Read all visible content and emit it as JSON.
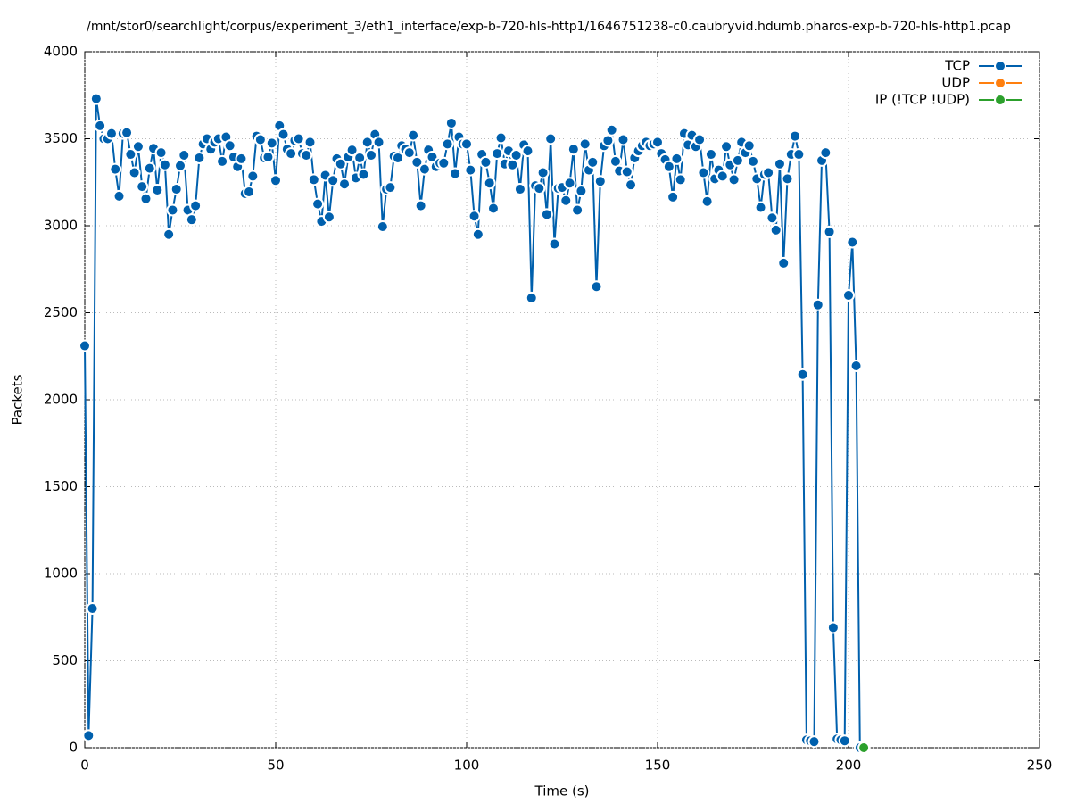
{
  "chart_data": {
    "type": "line",
    "title": "/mnt/stor0/searchlight/corpus/experiment_3/eth1_interface/exp-b-720-hls-http1/1646751238-c0.caubryvid.hdumb.pharos-exp-b-720-hls-http1.pcap",
    "x_label": "Time (s)",
    "y_label": "Packets",
    "xlim": [
      0,
      250
    ],
    "xticks": [
      0,
      50,
      100,
      150,
      200,
      250
    ],
    "ylim": [
      0,
      4000
    ],
    "yticks": [
      0,
      500,
      1000,
      1500,
      2000,
      2500,
      3000,
      3500,
      4000
    ],
    "grid": true,
    "legend": "top-right",
    "series": [
      {
        "name": "TCP",
        "color": "#0060ad",
        "x": [
          0,
          1,
          2,
          3,
          4,
          5,
          6,
          7,
          8,
          9,
          10,
          11,
          12,
          13,
          14,
          15,
          16,
          17,
          18,
          19,
          20,
          21,
          22,
          23,
          24,
          25,
          26,
          27,
          28,
          29,
          30,
          31,
          32,
          33,
          34,
          35,
          36,
          37,
          38,
          39,
          40,
          41,
          42,
          43,
          44,
          45,
          46,
          47,
          48,
          49,
          50,
          51,
          52,
          53,
          54,
          55,
          56,
          57,
          58,
          59,
          60,
          61,
          62,
          63,
          64,
          65,
          66,
          67,
          68,
          69,
          70,
          71,
          72,
          73,
          74,
          75,
          76,
          77,
          78,
          79,
          80,
          81,
          82,
          83,
          84,
          85,
          86,
          87,
          88,
          89,
          90,
          91,
          92,
          93,
          94,
          95,
          96,
          97,
          98,
          99,
          100,
          101,
          102,
          103,
          104,
          105,
          106,
          107,
          108,
          109,
          110,
          111,
          112,
          113,
          114,
          115,
          116,
          117,
          118,
          119,
          120,
          121,
          122,
          123,
          124,
          125,
          126,
          127,
          128,
          129,
          130,
          131,
          132,
          133,
          134,
          135,
          136,
          137,
          138,
          139,
          140,
          141,
          142,
          143,
          144,
          145,
          146,
          147,
          148,
          149,
          150,
          151,
          152,
          153,
          154,
          155,
          156,
          157,
          158,
          159,
          160,
          161,
          162,
          163,
          164,
          165,
          166,
          167,
          168,
          169,
          170,
          171,
          172,
          173,
          174,
          175,
          176,
          177,
          178,
          179,
          180,
          181,
          182,
          183,
          184,
          185,
          186,
          187,
          188,
          189,
          190,
          191,
          192,
          193,
          194,
          195,
          196,
          197,
          198,
          199,
          200,
          201,
          202,
          203
        ],
        "values": [
          2310,
          70,
          800,
          3730,
          3575,
          3500,
          3500,
          3530,
          3325,
          3170,
          3530,
          3535,
          3410,
          3305,
          3455,
          3225,
          3155,
          3330,
          3445,
          3205,
          3420,
          3350,
          2950,
          3090,
          3210,
          3345,
          3405,
          3090,
          3035,
          3115,
          3390,
          3470,
          3500,
          3440,
          3480,
          3500,
          3370,
          3510,
          3460,
          3395,
          3340,
          3385,
          3185,
          3195,
          3285,
          3515,
          3495,
          3390,
          3395,
          3475,
          3260,
          3575,
          3525,
          3440,
          3415,
          3490,
          3500,
          3415,
          3405,
          3480,
          3265,
          3125,
          3025,
          3290,
          3050,
          3260,
          3385,
          3355,
          3240,
          3395,
          3435,
          3275,
          3390,
          3295,
          3480,
          3405,
          3525,
          3480,
          2995,
          3210,
          3220,
          3400,
          3390,
          3460,
          3440,
          3420,
          3520,
          3365,
          3115,
          3325,
          3435,
          3395,
          3340,
          3360,
          3360,
          3470,
          3590,
          3300,
          3510,
          3470,
          3470,
          3320,
          3055,
          2950,
          3410,
          3365,
          3245,
          3100,
          3415,
          3505,
          3355,
          3430,
          3350,
          3405,
          3210,
          3465,
          3430,
          2585,
          3230,
          3215,
          3305,
          3065,
          3500,
          2895,
          3215,
          3220,
          3145,
          3245,
          3440,
          3090,
          3200,
          3470,
          3320,
          3365,
          2650,
          3255,
          3460,
          3490,
          3550,
          3370,
          3315,
          3495,
          3310,
          3235,
          3390,
          3430,
          3460,
          3480,
          3460,
          3470,
          3480,
          3415,
          3380,
          3340,
          3165,
          3385,
          3265,
          3530,
          3465,
          3520,
          3455,
          3495,
          3305,
          3140,
          3410,
          3270,
          3320,
          3285,
          3455,
          3350,
          3265,
          3375,
          3480,
          3420,
          3460,
          3370,
          3270,
          3105,
          3295,
          3305,
          3045,
          2975,
          3355,
          2785,
          3270,
          3410,
          3515,
          3410,
          2145,
          45,
          40,
          35,
          2545,
          3375,
          3420,
          2965,
          690,
          50,
          45,
          40,
          2600,
          2905,
          2195,
          0
        ]
      },
      {
        "name": "UDP",
        "color": "#ff7f0e",
        "x": [],
        "values": []
      },
      {
        "name": "IP (!TCP  !UDP)",
        "color": "#2ca02c",
        "x": [
          204
        ],
        "values": [
          0
        ]
      }
    ]
  }
}
